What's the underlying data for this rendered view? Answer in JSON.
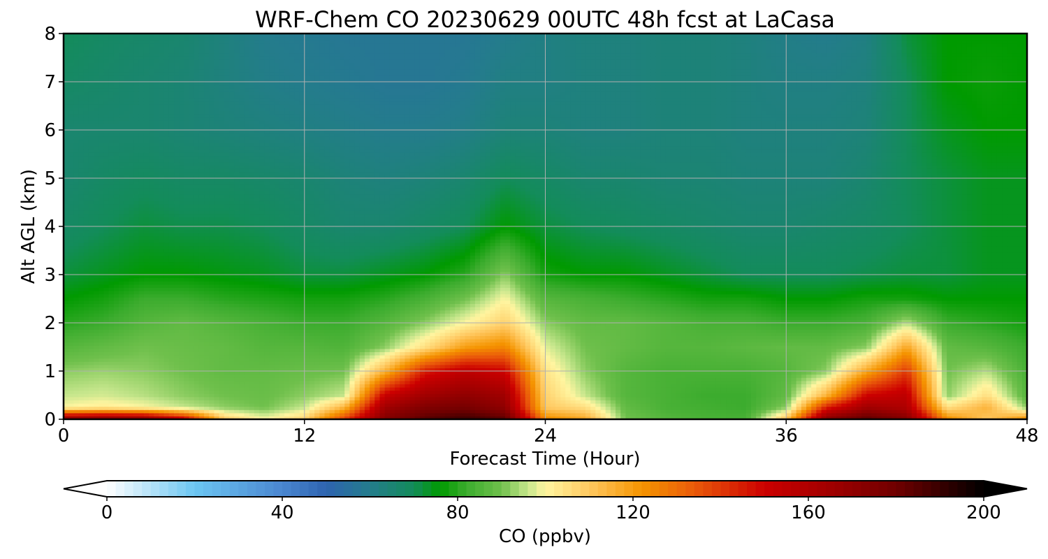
{
  "chart_data": {
    "type": "heatmap",
    "title": "WRF-Chem CO  20230629 00UTC 48h fcst at LaCasa",
    "xlabel": "Forecast Time (Hour)",
    "ylabel": "Alt AGL (km)",
    "xlim": [
      0,
      48
    ],
    "ylim": [
      0,
      8
    ],
    "x_ticks": [
      "0",
      "12",
      "24",
      "36",
      "48"
    ],
    "y_ticks": [
      "0",
      "1",
      "2",
      "3",
      "4",
      "5",
      "6",
      "7",
      "8"
    ],
    "grid": true,
    "x_hours": [
      0,
      2,
      4,
      6,
      8,
      10,
      12,
      14,
      16,
      18,
      20,
      22,
      24,
      26,
      28,
      30,
      32,
      34,
      36,
      38,
      40,
      42,
      44,
      46,
      48
    ],
    "y_km": [
      0,
      0.25,
      0.5,
      1,
      1.5,
      2,
      2.5,
      3,
      4,
      5,
      6,
      7,
      8
    ],
    "values_ppbv": [
      [
        175,
        178,
        176,
        155,
        110,
        100,
        108,
        140,
        175,
        185,
        190,
        185,
        125,
        118,
        90,
        86,
        84,
        84,
        112,
        175,
        185,
        175,
        125,
        110,
        125
      ],
      [
        100,
        102,
        100,
        96,
        92,
        90,
        96,
        115,
        165,
        175,
        178,
        170,
        110,
        105,
        88,
        84,
        83,
        82,
        92,
        145,
        165,
        160,
        105,
        115,
        92
      ],
      [
        96,
        97,
        95,
        92,
        90,
        89,
        92,
        96,
        152,
        165,
        170,
        165,
        108,
        96,
        86,
        84,
        82,
        82,
        88,
        115,
        150,
        155,
        92,
        105,
        86
      ],
      [
        92,
        93,
        92,
        90,
        88,
        88,
        89,
        90,
        115,
        145,
        155,
        150,
        104,
        92,
        86,
        84,
        84,
        84,
        86,
        92,
        118,
        140,
        90,
        95,
        84
      ],
      [
        86,
        88,
        90,
        89,
        88,
        86,
        86,
        85,
        92,
        105,
        120,
        125,
        98,
        90,
        88,
        86,
        86,
        87,
        88,
        88,
        92,
        118,
        88,
        86,
        82
      ],
      [
        80,
        82,
        86,
        88,
        86,
        84,
        82,
        82,
        86,
        92,
        100,
        108,
        92,
        88,
        88,
        86,
        84,
        84,
        82,
        82,
        84,
        95,
        82,
        80,
        78
      ],
      [
        76,
        78,
        82,
        82,
        80,
        79,
        78,
        78,
        80,
        84,
        90,
        100,
        86,
        84,
        82,
        80,
        78,
        78,
        76,
        76,
        78,
        78,
        76,
        76,
        76
      ],
      [
        72,
        74,
        76,
        76,
        75,
        74,
        72,
        72,
        74,
        76,
        80,
        92,
        78,
        76,
        76,
        74,
        72,
        70,
        70,
        70,
        71,
        72,
        72,
        74,
        74
      ],
      [
        68,
        70,
        72,
        71,
        71,
        70,
        68,
        66,
        66,
        68,
        70,
        76,
        72,
        70,
        69,
        68,
        67,
        66,
        66,
        67,
        68,
        70,
        72,
        74,
        74
      ],
      [
        66,
        68,
        69,
        68,
        68,
        67,
        66,
        64,
        63,
        64,
        66,
        70,
        68,
        66,
        66,
        65,
        65,
        64,
        64,
        64,
        66,
        70,
        72,
        74,
        74
      ],
      [
        66,
        66,
        66,
        65,
        64,
        63,
        62,
        61,
        60,
        60,
        61,
        64,
        64,
        63,
        63,
        64,
        64,
        63,
        63,
        63,
        64,
        70,
        74,
        76,
        76
      ],
      [
        68,
        67,
        66,
        65,
        63,
        61,
        60,
        59,
        58,
        58,
        59,
        62,
        62,
        63,
        63,
        64,
        64,
        63,
        62,
        62,
        63,
        70,
        76,
        77,
        76
      ],
      [
        70,
        68,
        67,
        66,
        63,
        60,
        59,
        58,
        58,
        58,
        58,
        60,
        62,
        63,
        63,
        64,
        64,
        63,
        61,
        60,
        62,
        72,
        76,
        76,
        76
      ]
    ],
    "colorbar": {
      "label": "CO  (ppbv)",
      "ticks": [
        "0",
        "40",
        "80",
        "120",
        "160",
        "200"
      ],
      "range": [
        0,
        200
      ],
      "extend": "both",
      "stops": [
        {
          "v": 0,
          "c": "#ffffff"
        },
        {
          "v": 20,
          "c": "#6cc6f2"
        },
        {
          "v": 40,
          "c": "#4a86d0"
        },
        {
          "v": 50,
          "c": "#2e63b0"
        },
        {
          "v": 60,
          "c": "#247c8c"
        },
        {
          "v": 70,
          "c": "#138c5a"
        },
        {
          "v": 76,
          "c": "#009a00"
        },
        {
          "v": 82,
          "c": "#3cac2e"
        },
        {
          "v": 90,
          "c": "#6fc04c"
        },
        {
          "v": 96,
          "c": "#c6e68c"
        },
        {
          "v": 100,
          "c": "#fff5a0"
        },
        {
          "v": 110,
          "c": "#ffc860"
        },
        {
          "v": 122,
          "c": "#f59400"
        },
        {
          "v": 134,
          "c": "#ea5a0a"
        },
        {
          "v": 150,
          "c": "#cc0000"
        },
        {
          "v": 165,
          "c": "#a00000"
        },
        {
          "v": 180,
          "c": "#700000"
        },
        {
          "v": 200,
          "c": "#000000"
        }
      ]
    }
  }
}
